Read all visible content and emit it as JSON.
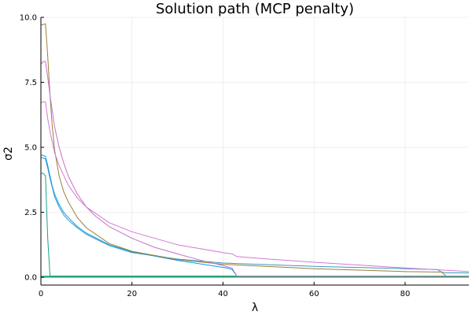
{
  "chart_data": {
    "type": "line",
    "title": "Solution path (MCP penalty)",
    "xlabel": "λ",
    "ylabel": "σ2",
    "xlim": [
      0,
      94
    ],
    "ylim": [
      -0.3,
      10
    ],
    "xticks": [
      0,
      20,
      40,
      60,
      80
    ],
    "yticks": [
      0.0,
      2.5,
      5.0,
      7.5,
      10.0
    ],
    "xtick_labels": [
      "0",
      "20",
      "40",
      "60",
      "80"
    ],
    "ytick_labels": [
      "0.0",
      "2.5",
      "5.0",
      "7.5",
      "10.0"
    ],
    "grid": true,
    "legend": "none",
    "series": [
      {
        "color": "#e26f46",
        "x": [
          0,
          94
        ],
        "y": [
          0,
          0
        ]
      },
      {
        "color": "#3da44d",
        "x": [
          0,
          94
        ],
        "y": [
          0.02,
          0.02
        ]
      },
      {
        "color": "#00a9ad",
        "x": [
          0,
          94
        ],
        "y": [
          0.04,
          0.04
        ]
      },
      {
        "color": "#009af9",
        "x": [
          0,
          0.3,
          1,
          1.5,
          2,
          2.5,
          3,
          4,
          5,
          6,
          8,
          10,
          15,
          20,
          30,
          40,
          41,
          42,
          43,
          94
        ],
        "y": [
          4.7,
          4.7,
          4.65,
          4.3,
          3.9,
          3.5,
          3.2,
          2.8,
          2.5,
          2.3,
          1.95,
          1.7,
          1.25,
          0.98,
          0.65,
          0.38,
          0.35,
          0.3,
          0.05,
          0.05
        ]
      },
      {
        "color": "#1f9e89",
        "x": [
          0,
          0.5,
          1,
          1.5,
          2,
          94
        ],
        "y": [
          4.0,
          4.0,
          3.9,
          1.5,
          0.05,
          0.05
        ]
      },
      {
        "color": "#3a9abf",
        "x": [
          0,
          0.3,
          1,
          1.5,
          2,
          3,
          4,
          5,
          6,
          8,
          10,
          15,
          20,
          30,
          40,
          60,
          80,
          87,
          88,
          89,
          94
        ],
        "y": [
          4.6,
          4.6,
          4.55,
          4.2,
          3.8,
          3.1,
          2.7,
          2.4,
          2.2,
          1.9,
          1.65,
          1.22,
          0.95,
          0.7,
          0.55,
          0.42,
          0.33,
          0.3,
          0.2,
          0.17,
          0.17
        ]
      },
      {
        "color": "#9b7f36",
        "x": [
          0,
          1,
          1.5,
          2,
          2.5,
          3,
          4,
          5,
          6,
          8,
          10,
          15,
          20,
          30,
          40,
          60,
          80,
          88,
          89,
          94
        ],
        "y": [
          9.7,
          9.75,
          8.5,
          7.0,
          5.8,
          4.9,
          3.9,
          3.3,
          2.9,
          2.3,
          1.9,
          1.3,
          1.0,
          0.68,
          0.5,
          0.33,
          0.22,
          0.2,
          0.05,
          0.05
        ]
      },
      {
        "color": "#c571c8",
        "x": [
          0,
          0.5,
          1,
          1.5,
          2,
          3,
          4,
          5,
          6,
          8,
          10,
          12,
          15,
          20,
          25,
          30,
          35,
          40,
          41,
          42,
          43,
          94
        ],
        "y": [
          8.2,
          8.3,
          8.3,
          7.7,
          7.0,
          5.8,
          5.0,
          4.4,
          3.9,
          3.2,
          2.7,
          2.35,
          1.95,
          1.5,
          1.15,
          0.9,
          0.66,
          0.45,
          0.4,
          0.35,
          0.05,
          0.05
        ]
      },
      {
        "color": "#d07ad4",
        "x": [
          0,
          0.5,
          1,
          1.5,
          2,
          3,
          4,
          6,
          8,
          10,
          15,
          20,
          30,
          40,
          42,
          43,
          50,
          60,
          70,
          80,
          88,
          94
        ],
        "y": [
          6.7,
          6.75,
          6.75,
          6.1,
          5.6,
          4.8,
          4.3,
          3.55,
          3.05,
          2.7,
          2.1,
          1.75,
          1.25,
          0.95,
          0.9,
          0.8,
          0.7,
          0.58,
          0.47,
          0.36,
          0.28,
          0.22
        ]
      }
    ]
  }
}
